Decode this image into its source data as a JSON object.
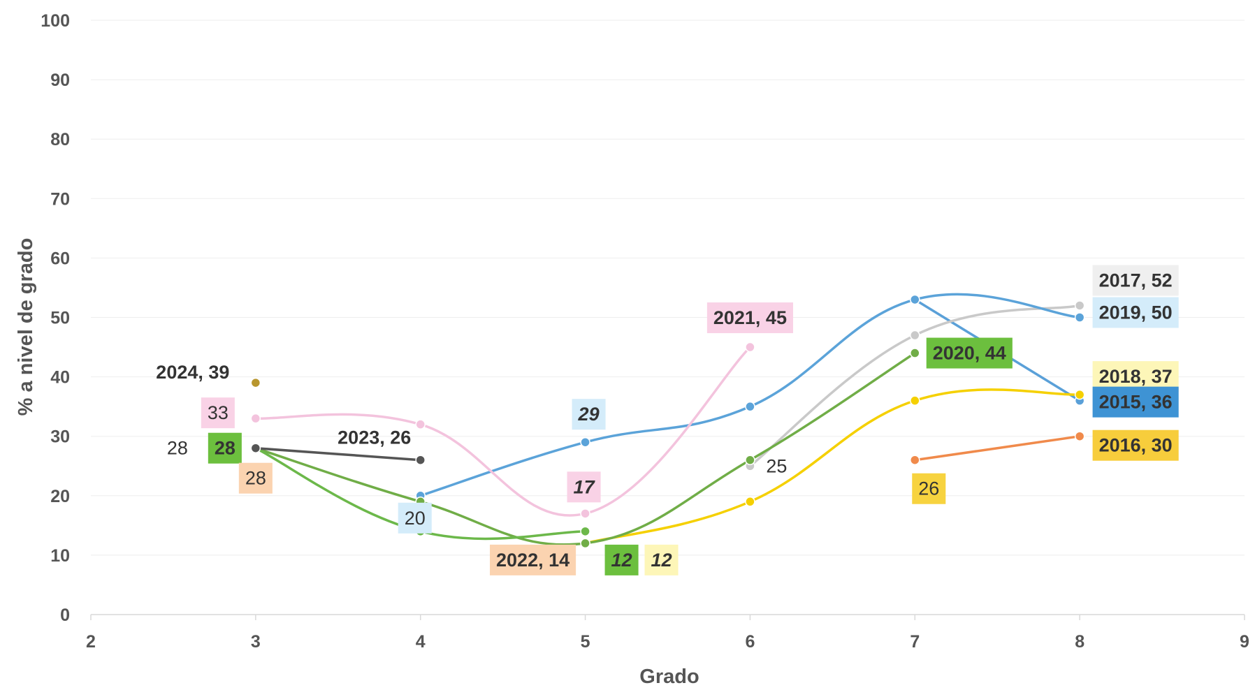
{
  "chart_data": {
    "type": "line",
    "xlabel": "Grado",
    "ylabel": "% a nivel de grado",
    "xlim": [
      2,
      9
    ],
    "ylim": [
      0,
      100
    ],
    "x_ticks": [
      "2",
      "3",
      "4",
      "5",
      "6",
      "7",
      "8",
      "9"
    ],
    "y_ticks": [
      "0",
      "10",
      "20",
      "30",
      "40",
      "50",
      "60",
      "70",
      "80",
      "90",
      "100"
    ],
    "grid": true,
    "series": [
      {
        "name": "2015",
        "color": "#5aa0d8",
        "points": [
          [
            7,
            53
          ],
          [
            8,
            36
          ]
        ]
      },
      {
        "name": "2016",
        "color": "#f08a4b",
        "points": [
          [
            7,
            26
          ],
          [
            8,
            30
          ]
        ]
      },
      {
        "name": "2017",
        "color": "#c9c9c9",
        "points": [
          [
            6,
            25
          ],
          [
            7,
            47
          ],
          [
            8,
            52
          ]
        ]
      },
      {
        "name": "2018",
        "color": "#f5d000",
        "points": [
          [
            5,
            12
          ],
          [
            6,
            19
          ],
          [
            7,
            36
          ],
          [
            8,
            37
          ]
        ]
      },
      {
        "name": "2019",
        "color": "#5ba3d9",
        "points": [
          [
            4,
            20
          ],
          [
            5,
            29
          ],
          [
            6,
            35
          ],
          [
            7,
            53
          ],
          [
            8,
            50
          ]
        ]
      },
      {
        "name": "2020",
        "color": "#70ad47",
        "points": [
          [
            3,
            28
          ],
          [
            4,
            19
          ],
          [
            5,
            12
          ],
          [
            6,
            26
          ],
          [
            7,
            44
          ]
        ]
      },
      {
        "name": "2021",
        "color": "#f3c3dd",
        "points": [
          [
            3,
            33
          ],
          [
            4,
            32
          ],
          [
            5,
            17
          ],
          [
            6,
            45
          ]
        ]
      },
      {
        "name": "2022",
        "color": "#6cb84a",
        "points": [
          [
            3,
            28
          ],
          [
            4,
            14
          ],
          [
            5,
            14
          ]
        ]
      },
      {
        "name": "2023",
        "color": "#555555",
        "points": [
          [
            3,
            28
          ],
          [
            4,
            26
          ]
        ]
      },
      {
        "name": "2024",
        "color": "#b8962e",
        "points": [
          [
            3,
            39
          ]
        ]
      }
    ],
    "labels": [
      {
        "text": "2017, 52",
        "x": 8,
        "y": 52,
        "bg": "#efefef",
        "style": "bold"
      },
      {
        "text": "2019, 50",
        "x": 8,
        "y": 50,
        "bg": "#d4ecfa",
        "style": "bold"
      },
      {
        "text": "2018, 37",
        "x": 8,
        "y": 37,
        "bg": "#fdf6b8",
        "style": "bold"
      },
      {
        "text": "2015, 36",
        "x": 8,
        "y": 36,
        "bg": "#3e93d4",
        "style": "bold"
      },
      {
        "text": "2016, 30",
        "x": 8,
        "y": 30,
        "bg": "#f7cd3c",
        "style": "bold"
      },
      {
        "text": "2020, 44",
        "x": 7,
        "y": 44,
        "bg": "#6cbf3e",
        "style": "bold"
      },
      {
        "text": "26",
        "x": 7,
        "y": 26,
        "bg": "#f7d33f",
        "style": "plain"
      },
      {
        "text": "2021, 45",
        "x": 6,
        "y": 45,
        "bg": "#f9d2e6",
        "style": "bold"
      },
      {
        "text": "25",
        "x": 6,
        "y": 25,
        "bg": "",
        "style": "plain"
      },
      {
        "text": "29",
        "x": 5,
        "y": 29,
        "bg": "#d4ecfa",
        "style": "italic"
      },
      {
        "text": "17",
        "x": 5,
        "y": 17,
        "bg": "#f9d2e6",
        "style": "italic"
      },
      {
        "text": "12",
        "x": 5,
        "y": 12,
        "bg": "#6cbf3e",
        "style": "italic"
      },
      {
        "text": "12",
        "x": 5,
        "y": 12,
        "bg": "#fdf6b8",
        "style": "italic"
      },
      {
        "text": "2022, 14",
        "x": 5,
        "y": 14,
        "bg": "#fbd3b0",
        "style": "bold"
      },
      {
        "text": "2023, 26",
        "x": 4,
        "y": 26,
        "bg": "",
        "style": "bold"
      },
      {
        "text": "20",
        "x": 4,
        "y": 20,
        "bg": "#d4ecfa",
        "style": "plain"
      },
      {
        "text": "2024, 39",
        "x": 3,
        "y": 39,
        "bg": "",
        "style": "bold"
      },
      {
        "text": "33",
        "x": 3,
        "y": 33,
        "bg": "#f9d2e6",
        "style": "plain"
      },
      {
        "text": "28",
        "x": 3,
        "y": 28,
        "bg": "",
        "style": "plain"
      },
      {
        "text": "28",
        "x": 3,
        "y": 28,
        "bg": "#6cbf3e",
        "style": "bold"
      },
      {
        "text": "28",
        "x": 3,
        "y": 28,
        "bg": "#fbd3b0",
        "style": "plain"
      }
    ]
  }
}
